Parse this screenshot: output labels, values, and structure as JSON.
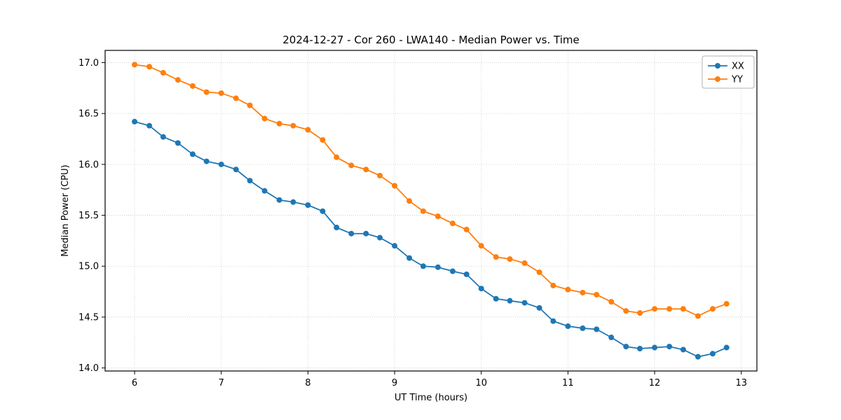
{
  "chart_data": {
    "type": "line",
    "title": "2024-12-27 - Cor 260 - LWA140 - Median Power vs. Time",
    "xlabel": "UT Time (hours)",
    "ylabel": "Median Power (CPU)",
    "xlim": [
      5.66,
      13.18
    ],
    "ylim": [
      13.97,
      17.12
    ],
    "xticks": [
      6,
      7,
      8,
      9,
      10,
      11,
      12,
      13
    ],
    "yticks": [
      14.0,
      14.5,
      15.0,
      15.5,
      16.0,
      16.5,
      17.0
    ],
    "grid": true,
    "legend_position": "upper right",
    "marker": "circle",
    "x": [
      6.0,
      6.17,
      6.33,
      6.5,
      6.67,
      6.83,
      7.0,
      7.17,
      7.33,
      7.5,
      7.67,
      7.83,
      8.0,
      8.17,
      8.33,
      8.5,
      8.67,
      8.83,
      9.0,
      9.17,
      9.33,
      9.5,
      9.67,
      9.83,
      10.0,
      10.17,
      10.33,
      10.5,
      10.67,
      10.83,
      11.0,
      11.17,
      11.33,
      11.5,
      11.67,
      11.83,
      12.0,
      12.17,
      12.33,
      12.5,
      12.67,
      12.83
    ],
    "series": [
      {
        "name": "XX",
        "color": "#1f77b4",
        "values": [
          16.42,
          16.38,
          16.27,
          16.21,
          16.1,
          16.03,
          16.0,
          15.95,
          15.84,
          15.74,
          15.65,
          15.63,
          15.6,
          15.54,
          15.38,
          15.32,
          15.32,
          15.28,
          15.2,
          15.08,
          15.0,
          14.99,
          14.95,
          14.92,
          14.78,
          14.68,
          14.66,
          14.64,
          14.59,
          14.46,
          14.41,
          14.39,
          14.38,
          14.3,
          14.21,
          14.19,
          14.2,
          14.21,
          14.18,
          14.11,
          14.14,
          14.2
        ]
      },
      {
        "name": "YY",
        "color": "#ff7f0e",
        "values": [
          16.98,
          16.96,
          16.9,
          16.83,
          16.77,
          16.71,
          16.7,
          16.65,
          16.58,
          16.45,
          16.4,
          16.38,
          16.34,
          16.24,
          16.07,
          15.99,
          15.95,
          15.89,
          15.79,
          15.64,
          15.54,
          15.49,
          15.42,
          15.36,
          15.2,
          15.09,
          15.07,
          15.03,
          14.94,
          14.81,
          14.77,
          14.74,
          14.72,
          14.65,
          14.56,
          14.54,
          14.58,
          14.58,
          14.58,
          14.51,
          14.58,
          14.63
        ]
      }
    ],
    "colors": {
      "grid": "#c8c8c8",
      "frame": "#000000",
      "background": "#ffffff",
      "legend_border": "#b0b0b0"
    }
  }
}
